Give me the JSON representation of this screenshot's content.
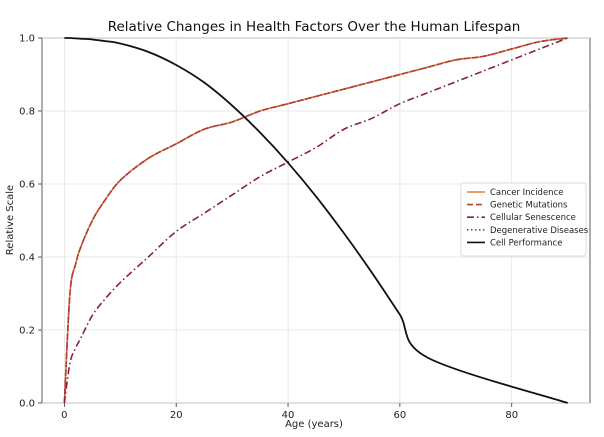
{
  "chart_data": {
    "type": "line",
    "title": "Relative Changes in Health Factors Over the Human Lifespan",
    "xlabel": "Age (years)",
    "ylabel": "Relative Scale",
    "xlim": [
      -4,
      94
    ],
    "ylim": [
      0.0,
      1.0
    ],
    "xticks": [
      "0",
      "20",
      "40",
      "60",
      "80"
    ],
    "xtick_values": [
      0,
      20,
      40,
      60,
      80
    ],
    "yticks": [
      "0.0",
      "0.2",
      "0.4",
      "0.6",
      "0.8",
      "1.0"
    ],
    "ytick_values": [
      0.0,
      0.2,
      0.4,
      0.6,
      0.8,
      1.0
    ],
    "grid": true,
    "legend_position": "right",
    "x": [
      0,
      1,
      2,
      3,
      5,
      7,
      10,
      15,
      20,
      25,
      30,
      35,
      40,
      45,
      50,
      55,
      60,
      65,
      70,
      75,
      80,
      85,
      90
    ],
    "series": [
      {
        "name": "Cancer Incidence",
        "color": "#e5802d",
        "dash": "solid",
        "values": [
          0.0,
          0.3,
          0.38,
          0.43,
          0.5,
          0.55,
          0.61,
          0.67,
          0.71,
          0.75,
          0.77,
          0.8,
          0.82,
          0.84,
          0.86,
          0.88,
          0.9,
          0.92,
          0.94,
          0.95,
          0.97,
          0.99,
          1.0
        ]
      },
      {
        "name": "Genetic Mutations",
        "color": "#b04a2a",
        "dash": "dashed",
        "values": [
          0.0,
          0.3,
          0.38,
          0.43,
          0.5,
          0.55,
          0.61,
          0.67,
          0.71,
          0.75,
          0.77,
          0.8,
          0.82,
          0.84,
          0.86,
          0.88,
          0.9,
          0.92,
          0.94,
          0.95,
          0.97,
          0.99,
          1.0
        ]
      },
      {
        "name": "Cellular Senescence",
        "color": "#8c1f3f",
        "dash": "dashdot",
        "values": [
          0.0,
          0.11,
          0.15,
          0.18,
          0.24,
          0.28,
          0.33,
          0.4,
          0.47,
          0.52,
          0.57,
          0.62,
          0.66,
          0.7,
          0.75,
          0.78,
          0.82,
          0.85,
          0.88,
          0.91,
          0.94,
          0.97,
          1.0
        ]
      },
      {
        "name": "Degenerative Diseases",
        "color": "#b03050",
        "dash": "dotted",
        "values": [
          0.0,
          0.3,
          0.38,
          0.43,
          0.5,
          0.55,
          0.61,
          0.67,
          0.71,
          0.75,
          0.77,
          0.8,
          0.82,
          0.84,
          0.86,
          0.88,
          0.9,
          0.92,
          0.94,
          0.95,
          0.97,
          0.99,
          1.0
        ]
      },
      {
        "name": "Cell Performance",
        "color": "#111111",
        "dash": "solid",
        "values": [
          1.0,
          1.0,
          0.999,
          0.998,
          0.996,
          0.992,
          0.985,
          0.962,
          0.926,
          0.878,
          0.815,
          0.741,
          0.658,
          0.566,
          0.465,
          0.357,
          0.242,
          0.124,
          0.0,
          0.0,
          0.0,
          0.0,
          0.0
        ]
      }
    ]
  }
}
